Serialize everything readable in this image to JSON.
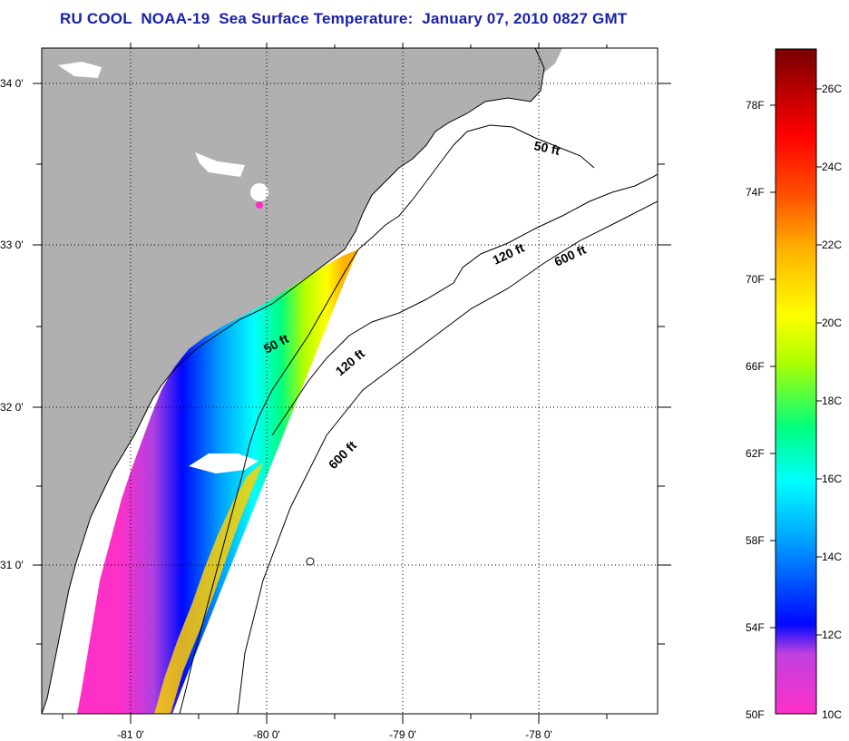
{
  "title": "RU COOL  NOAA-19  Sea Surface Temperature:  January 07, 2010 0827 GMT",
  "map": {
    "lat_labels": [
      "34 0'",
      "33 0'",
      "32 0'",
      "31 0'"
    ],
    "lon_labels": [
      "-81 0'",
      "-80 0'",
      "-79 0'",
      "-78 0'"
    ],
    "contour_labels": [
      "50 ft",
      "120 ft",
      "600 ft",
      "50 ft",
      "120 ft",
      "600 ft"
    ]
  },
  "colorbar": {
    "fahrenheit_labels": [
      "78F",
      "74F",
      "70F",
      "66F",
      "62F",
      "58F",
      "54F",
      "50F"
    ],
    "celsius_labels": [
      "26C",
      "24C",
      "22C",
      "20C",
      "18C",
      "16C",
      "14C",
      "12C",
      "10C"
    ],
    "colors": [
      "#ff30c8",
      "#b040e0",
      "#0008ff",
      "#00a0ff",
      "#00ffff",
      "#00ff80",
      "#b0ff00",
      "#ffff00",
      "#ffb000",
      "#ff5000",
      "#ff0000",
      "#a00000",
      "#780000"
    ]
  },
  "colors": {
    "land": "#b0b0b0",
    "title": "#1a22a8"
  }
}
